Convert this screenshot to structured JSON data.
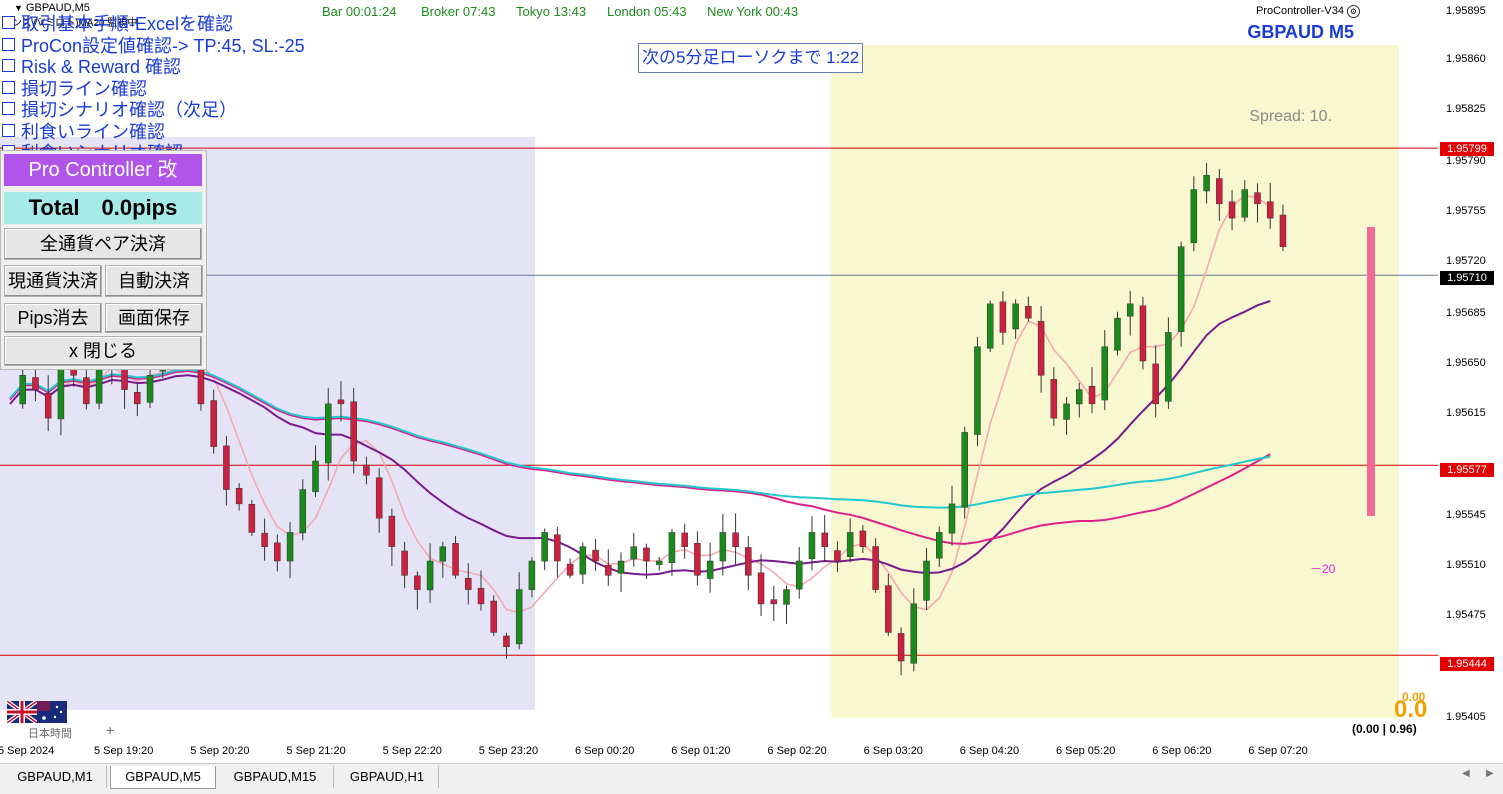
{
  "window": {
    "symbol_label": "GBPAUD,M5",
    "sub_label": "リンズバ(ミロト)MA20 監視中",
    "procontroller_version": "ProController-V34",
    "pair_timeframe": "GBPAUD M5"
  },
  "session_times": {
    "bar": "Bar 00:01:24",
    "broker": "Broker 07:43",
    "tokyo": "Tokyo 13:43",
    "london": "London 05:43",
    "newyork": "New York 00:43"
  },
  "countdown": "次の5分足ローソクまで 1:22",
  "spread": "Spread: 10.",
  "checklist": [
    "取引基本手順-Excelを確認",
    "ProCon設定値確認-> TP:45, SL:-25",
    "Risk & Reward 確認",
    "損切ライン確認",
    "損切シナリオ確認（次足）",
    "利食いライン確認",
    "利食いシナリオ確認"
  ],
  "procon": {
    "title": "Pro Controller 改",
    "total": "Total　0.0pips",
    "close_all_pairs": "全通貨ペア決済",
    "close_current": "現通貨決済",
    "auto_close": "自動決済",
    "clear_pips": "Pips消去",
    "save_screen": "画面保存",
    "close": "x 閉じる"
  },
  "price_levels": {
    "tp_line": "1.95799",
    "current": "1.95710",
    "sl_line": "1.95577",
    "low_line": "1.95444"
  },
  "y_axis_ticks": [
    "1.95895",
    "1.95860",
    "1.95825",
    "1.95790",
    "1.95755",
    "1.95720",
    "1.95685",
    "1.95650",
    "1.95615",
    "1.95545",
    "1.95510",
    "1.95475",
    "1.95405"
  ],
  "x_axis_ticks": [
    "5 Sep 2024",
    "5 Sep 19:20",
    "5 Sep 20:20",
    "5 Sep 21:20",
    "5 Sep 22:20",
    "5 Sep 23:20",
    "6 Sep 00:20",
    "6 Sep 01:20",
    "6 Sep 02:20",
    "6 Sep 03:20",
    "6 Sep 04:20",
    "6 Sep 05:20",
    "6 Sep 06:20",
    "6 Sep 07:20"
  ],
  "pl": {
    "small": "0.00",
    "big": "0.0",
    "ratio": "(0.00 | 0.96)"
  },
  "level_marker": "－20",
  "timezone_label": "日本時間",
  "plus": "+",
  "tabs": [
    {
      "label": "GBPAUD,M1",
      "active": false
    },
    {
      "label": "GBPAUD,M5",
      "active": true
    },
    {
      "label": "GBPAUD,M15",
      "active": false
    },
    {
      "label": "GBPAUD,H1",
      "active": false
    }
  ],
  "colors": {
    "bull": "#1a8a1a",
    "bear": "#cc2040",
    "ma_fast": "#f5a8b0",
    "ma_purple": "#7a1a90",
    "ma_magenta": "#e0208a",
    "ma_cyan": "#20c8d0",
    "session_blue": "#e4e4f6",
    "session_yellow": "#f8f7d0",
    "level_line": "#d40000",
    "signal_bar": "#f46a96"
  },
  "chart_data": {
    "type": "candlestick",
    "symbol": "GBPAUD",
    "timeframe": "M5",
    "ylim": [
      1.95395,
      1.95905
    ],
    "horizontal_lines": [
      1.95799,
      1.9571,
      1.95577,
      1.95444
    ],
    "close_series": [
      1.9562,
      1.9564,
      1.9563,
      1.9561,
      1.9566,
      1.9564,
      1.9562,
      1.9565,
      1.9566,
      1.9563,
      1.9562,
      1.9564,
      1.9566,
      1.9567,
      1.9565,
      1.9562,
      1.9559,
      1.9556,
      1.9555,
      1.9553,
      1.9552,
      1.9551,
      1.9553,
      1.9556,
      1.9558,
      1.9562,
      1.9562,
      1.9558,
      1.9557,
      1.9554,
      1.9552,
      1.955,
      1.9549,
      1.9551,
      1.9552,
      1.955,
      1.9549,
      1.9548,
      1.9546,
      1.9545,
      1.9549,
      1.9551,
      1.9553,
      1.9551,
      1.955,
      1.9552,
      1.9551,
      1.955,
      1.9551,
      1.9552,
      1.9551,
      1.9551,
      1.9553,
      1.9552,
      1.955,
      1.9551,
      1.9553,
      1.9552,
      1.955,
      1.9548,
      1.9548,
      1.9549,
      1.9551,
      1.9553,
      1.9552,
      1.9551,
      1.9553,
      1.9552,
      1.9549,
      1.9546,
      1.9544,
      1.9548,
      1.9551,
      1.9553,
      1.9555,
      1.956,
      1.9566,
      1.9569,
      1.9567,
      1.9569,
      1.9568,
      1.9564,
      1.9561,
      1.9562,
      1.9563,
      1.9562,
      1.9566,
      1.9568,
      1.9569,
      1.9565,
      1.9562,
      1.9567,
      1.9573,
      1.9577,
      1.9578,
      1.9576,
      1.9575,
      1.9577,
      1.9576,
      1.9575,
      1.9573,
      1.9572,
      1.9578,
      1.9581,
      1.9587,
      1.9582,
      1.958,
      1.9577,
      1.9578,
      1.9572,
      1.9572,
      1.9571
    ]
  }
}
